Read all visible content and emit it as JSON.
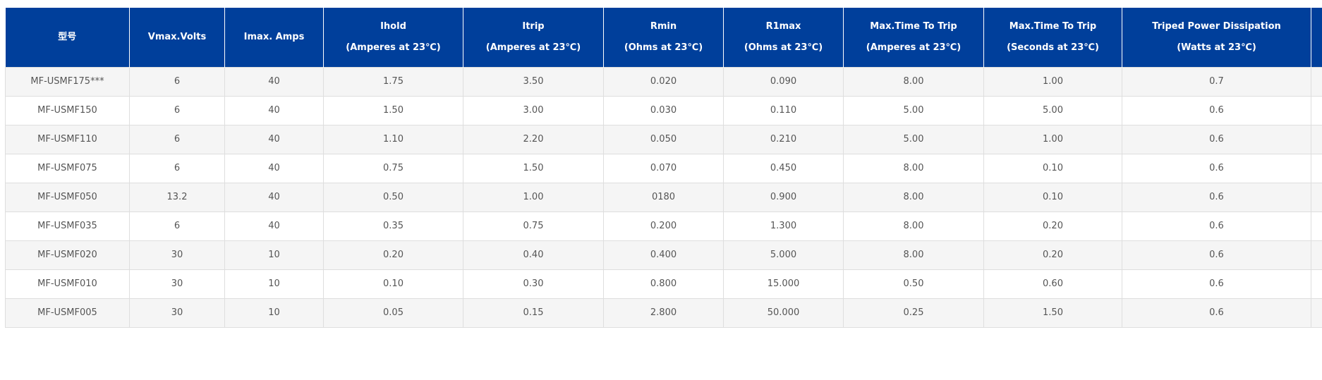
{
  "table": {
    "headers": [
      {
        "line1": "型号",
        "line2": ""
      },
      {
        "line1": "Vmax.Volts",
        "line2": ""
      },
      {
        "line1": "Imax. Amps",
        "line2": ""
      },
      {
        "line1": "Ihold",
        "line2": "(Amperes at 23℃)"
      },
      {
        "line1": "Itrip",
        "line2": "(Amperes at 23℃)"
      },
      {
        "line1": "Rmin",
        "line2": "(Ohms at 23℃)"
      },
      {
        "line1": "R1max",
        "line2": "(Ohms at 23℃)"
      },
      {
        "line1": "Max.Time To Trip",
        "line2": "(Amperes at 23℃)"
      },
      {
        "line1": "Max.Time To Trip",
        "line2": "(Seconds at 23℃)"
      },
      {
        "line1": "Triped Power Dissipation",
        "line2": "(Watts at 23℃)"
      },
      {
        "line1": "",
        "line2": ""
      }
    ],
    "rows": [
      [
        "MF-USMF175***",
        "6",
        "40",
        "1.75",
        "3.50",
        "0.020",
        "0.090",
        "8.00",
        "1.00",
        "0.7",
        ""
      ],
      [
        "MF-USMF150",
        "6",
        "40",
        "1.50",
        "3.00",
        "0.030",
        "0.110",
        "5.00",
        "5.00",
        "0.6",
        ""
      ],
      [
        "MF-USMF110",
        "6",
        "40",
        "1.10",
        "2.20",
        "0.050",
        "0.210",
        "5.00",
        "1.00",
        "0.6",
        ""
      ],
      [
        "MF-USMF075",
        "6",
        "40",
        "0.75",
        "1.50",
        "0.070",
        "0.450",
        "8.00",
        "0.10",
        "0.6",
        ""
      ],
      [
        "MF-USMF050",
        "13.2",
        "40",
        "0.50",
        "1.00",
        "0180",
        "0.900",
        "8.00",
        "0.10",
        "0.6",
        ""
      ],
      [
        "MF-USMF035",
        "6",
        "40",
        "0.35",
        "0.75",
        "0.200",
        "1.300",
        "8.00",
        "0.20",
        "0.6",
        ""
      ],
      [
        "MF-USMF020",
        "30",
        "10",
        "0.20",
        "0.40",
        "0.400",
        "5.000",
        "8.00",
        "0.20",
        "0.6",
        ""
      ],
      [
        "MF-USMF010",
        "30",
        "10",
        "0.10",
        "0.30",
        "0.800",
        "15.000",
        "0.50",
        "0.60",
        "0.6",
        ""
      ],
      [
        "MF-USMF005",
        "30",
        "10",
        "0.05",
        "0.15",
        "2.800",
        "50.000",
        "0.25",
        "1.50",
        "0.6",
        ""
      ]
    ]
  },
  "colors": {
    "header_bg": "#003f9b",
    "header_text": "#ffffff",
    "row_odd": "#f5f5f5",
    "row_even": "#ffffff",
    "cell_text": "#555555",
    "border": "#dedede"
  }
}
